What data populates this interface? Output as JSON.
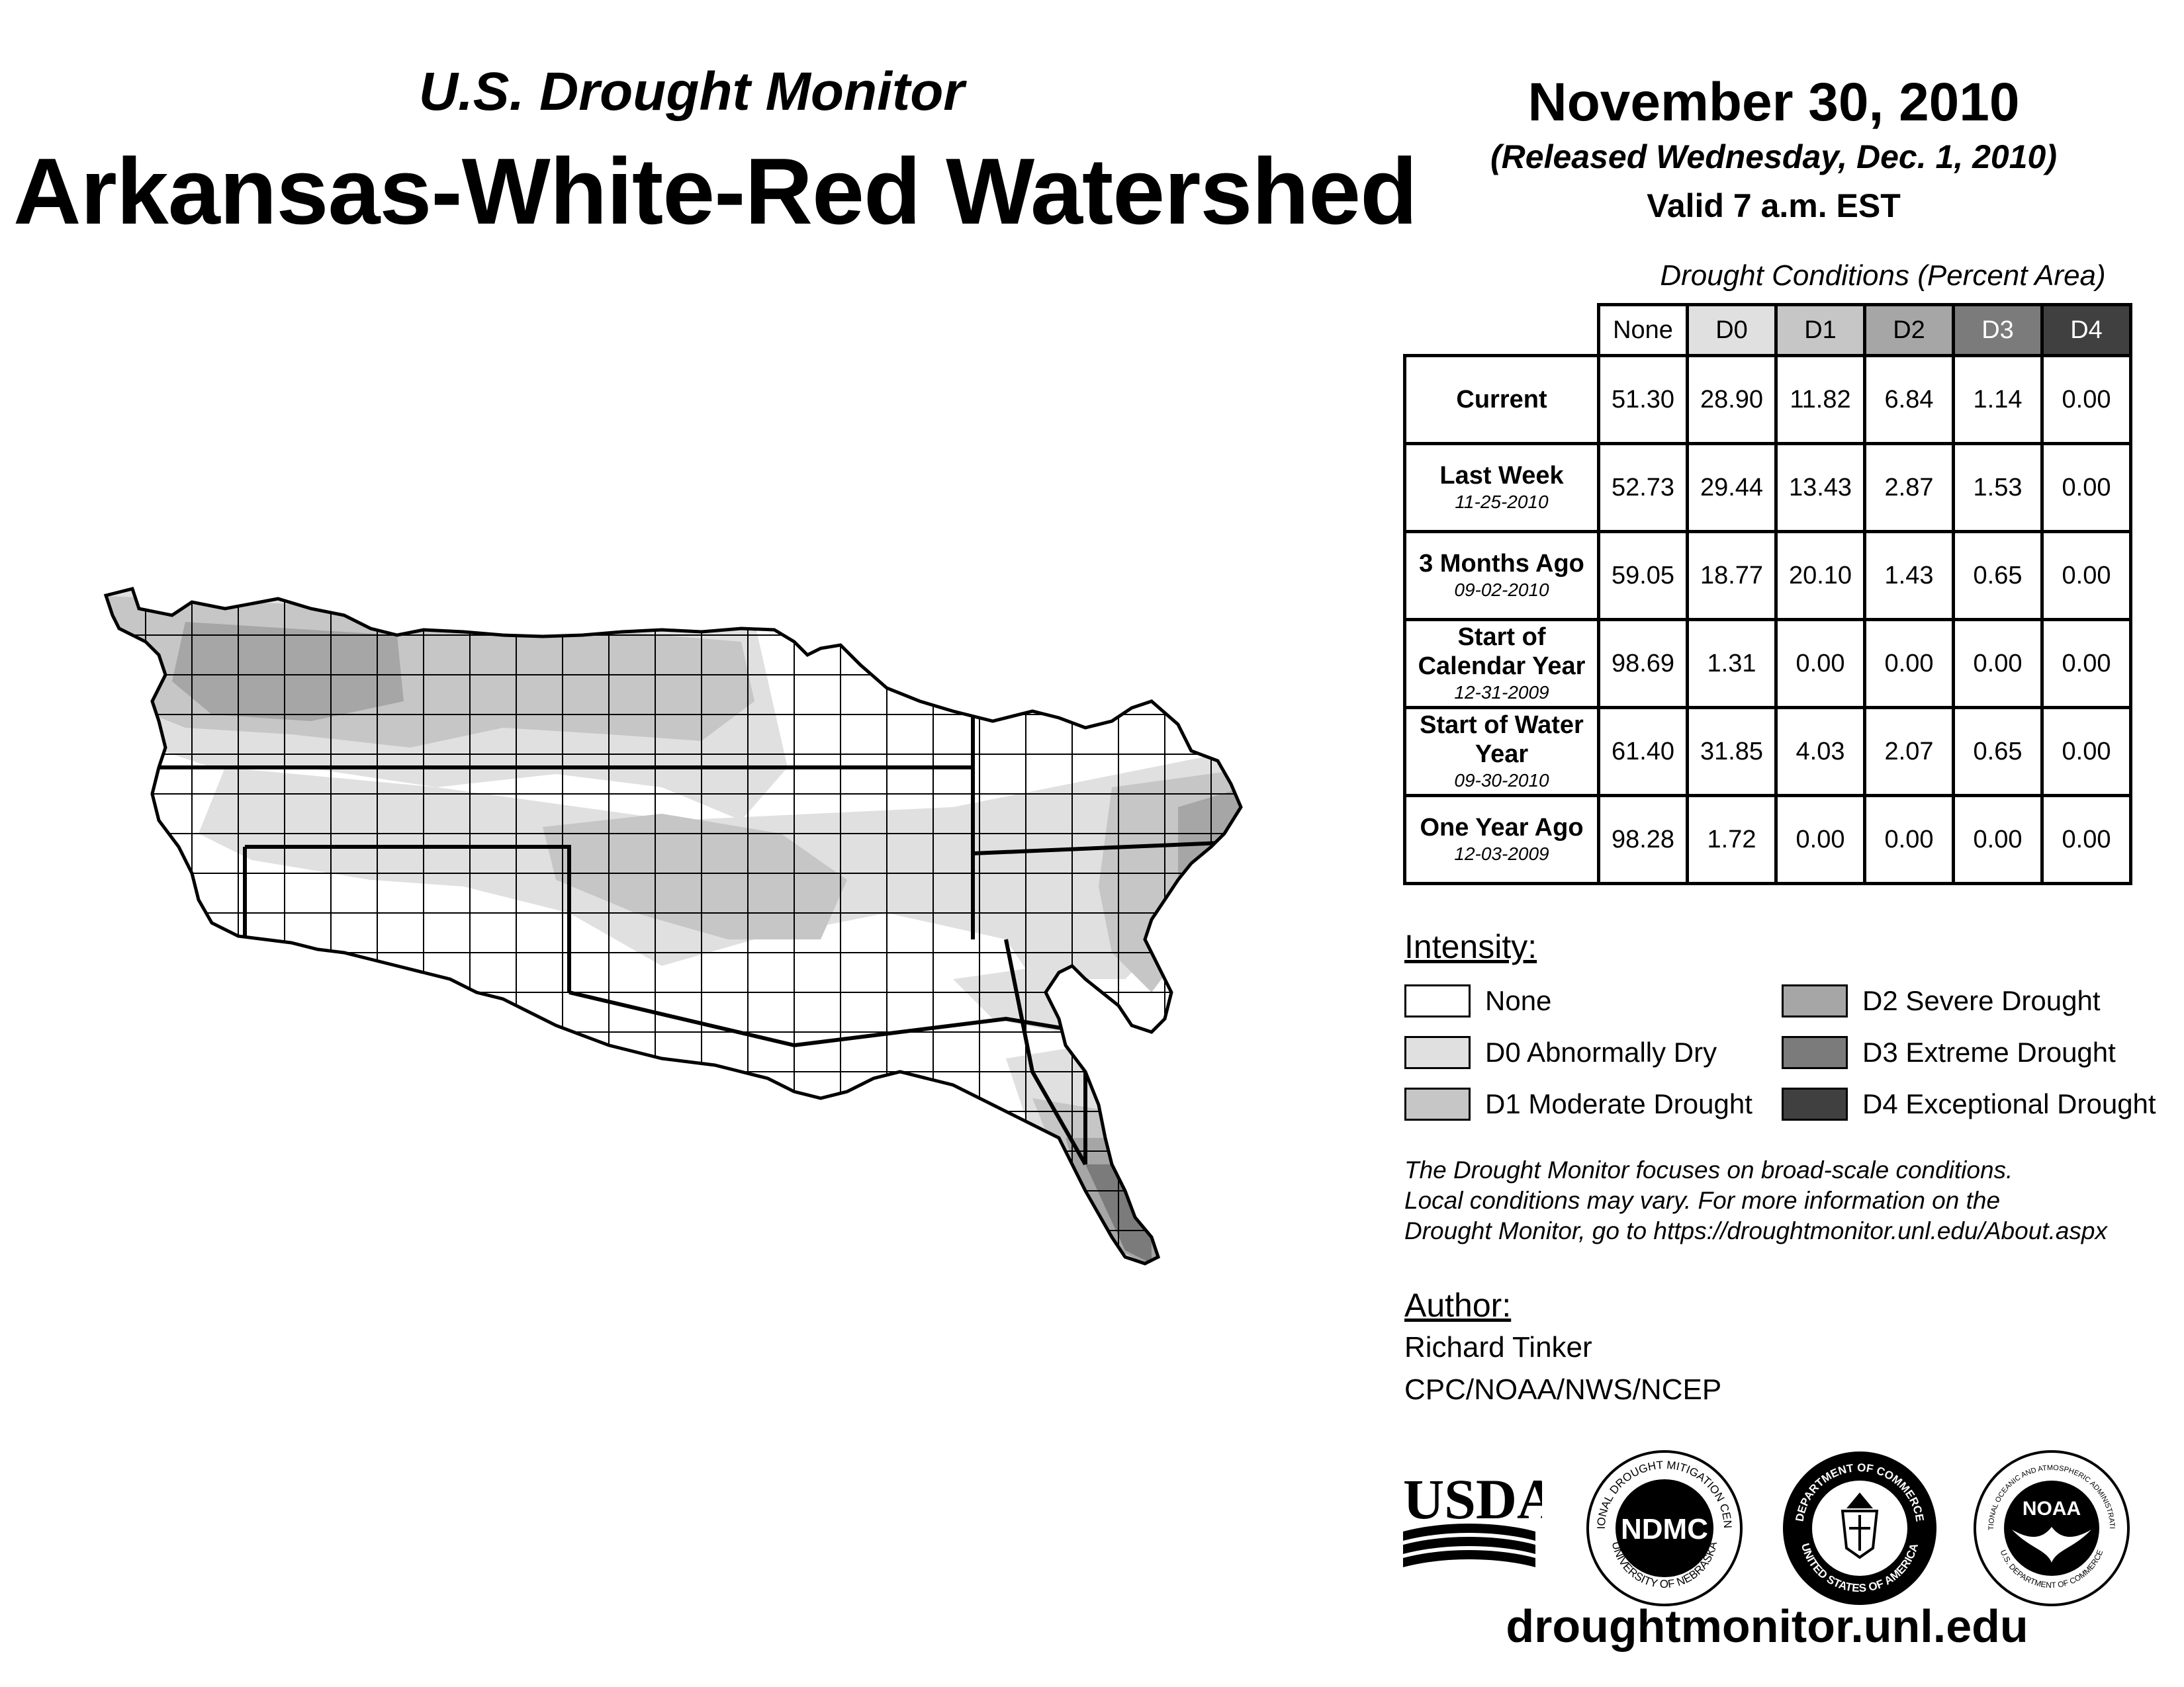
{
  "header": {
    "subtitle": "U.S. Drought Monitor",
    "title": "Arkansas-White-Red Watershed",
    "date": "November 30, 2010",
    "released": "(Released Wednesday, Dec. 1, 2010)",
    "valid": "Valid 7 a.m. EST"
  },
  "table": {
    "caption": "Drought Conditions (Percent Area)",
    "columns": [
      "None",
      "D0",
      "D1",
      "D2",
      "D3",
      "D4"
    ],
    "rows": [
      {
        "label": "Current",
        "date": "",
        "values": [
          "51.30",
          "28.90",
          "11.82",
          "6.84",
          "1.14",
          "0.00"
        ]
      },
      {
        "label": "Last Week",
        "date": "11-25-2010",
        "values": [
          "52.73",
          "29.44",
          "13.43",
          "2.87",
          "1.53",
          "0.00"
        ]
      },
      {
        "label": "3 Months Ago",
        "date": "09-02-2010",
        "values": [
          "59.05",
          "18.77",
          "20.10",
          "1.43",
          "0.65",
          "0.00"
        ]
      },
      {
        "label": "Start of Calendar Year",
        "date": "12-31-2009",
        "values": [
          "98.69",
          "1.31",
          "0.00",
          "0.00",
          "0.00",
          "0.00"
        ]
      },
      {
        "label": "Start of Water Year",
        "date": "09-30-2010",
        "values": [
          "61.40",
          "31.85",
          "4.03",
          "2.07",
          "0.65",
          "0.00"
        ]
      },
      {
        "label": "One Year Ago",
        "date": "12-03-2009",
        "values": [
          "98.28",
          "1.72",
          "0.00",
          "0.00",
          "0.00",
          "0.00"
        ]
      }
    ]
  },
  "legend": {
    "heading": "Intensity:",
    "items": [
      {
        "label": "None",
        "color": "#ffffff"
      },
      {
        "label": "D0 Abnormally Dry",
        "color": "#e0e0e0"
      },
      {
        "label": "D1 Moderate Drought",
        "color": "#c6c6c6"
      },
      {
        "label": "D2 Severe Drought",
        "color": "#a6a6a6"
      },
      {
        "label": "D3 Extreme Drought",
        "color": "#7b7b7b"
      },
      {
        "label": "D4 Exceptional Drought",
        "color": "#404040"
      }
    ]
  },
  "disclaimer": {
    "line1": "The Drought Monitor focuses on broad-scale conditions.",
    "line2": "Local conditions may vary. For more information on the",
    "line3": "Drought Monitor, go to https://droughtmonitor.unl.edu/About.aspx"
  },
  "author": {
    "heading": "Author:",
    "name": "Richard Tinker",
    "org": "CPC/NOAA/NWS/NCEP"
  },
  "logos": {
    "usda": "USDA",
    "ndmc": "NDMC",
    "ndmc_top": "NATIONAL DROUGHT MITIGATION CENTER",
    "ndmc_bottom": "UNIVERSITY OF NEBRASKA",
    "doc_top": "DEPARTMENT OF COMMERCE",
    "doc_bottom": "UNITED STATES OF AMERICA",
    "noaa": "NOAA",
    "noaa_top": "NATIONAL OCEANIC AND ATMOSPHERIC ADMINISTRATION",
    "noaa_bottom": "U.S. DEPARTMENT OF COMMERCE"
  },
  "footer": {
    "website": "droughtmonitor.unl.edu"
  }
}
